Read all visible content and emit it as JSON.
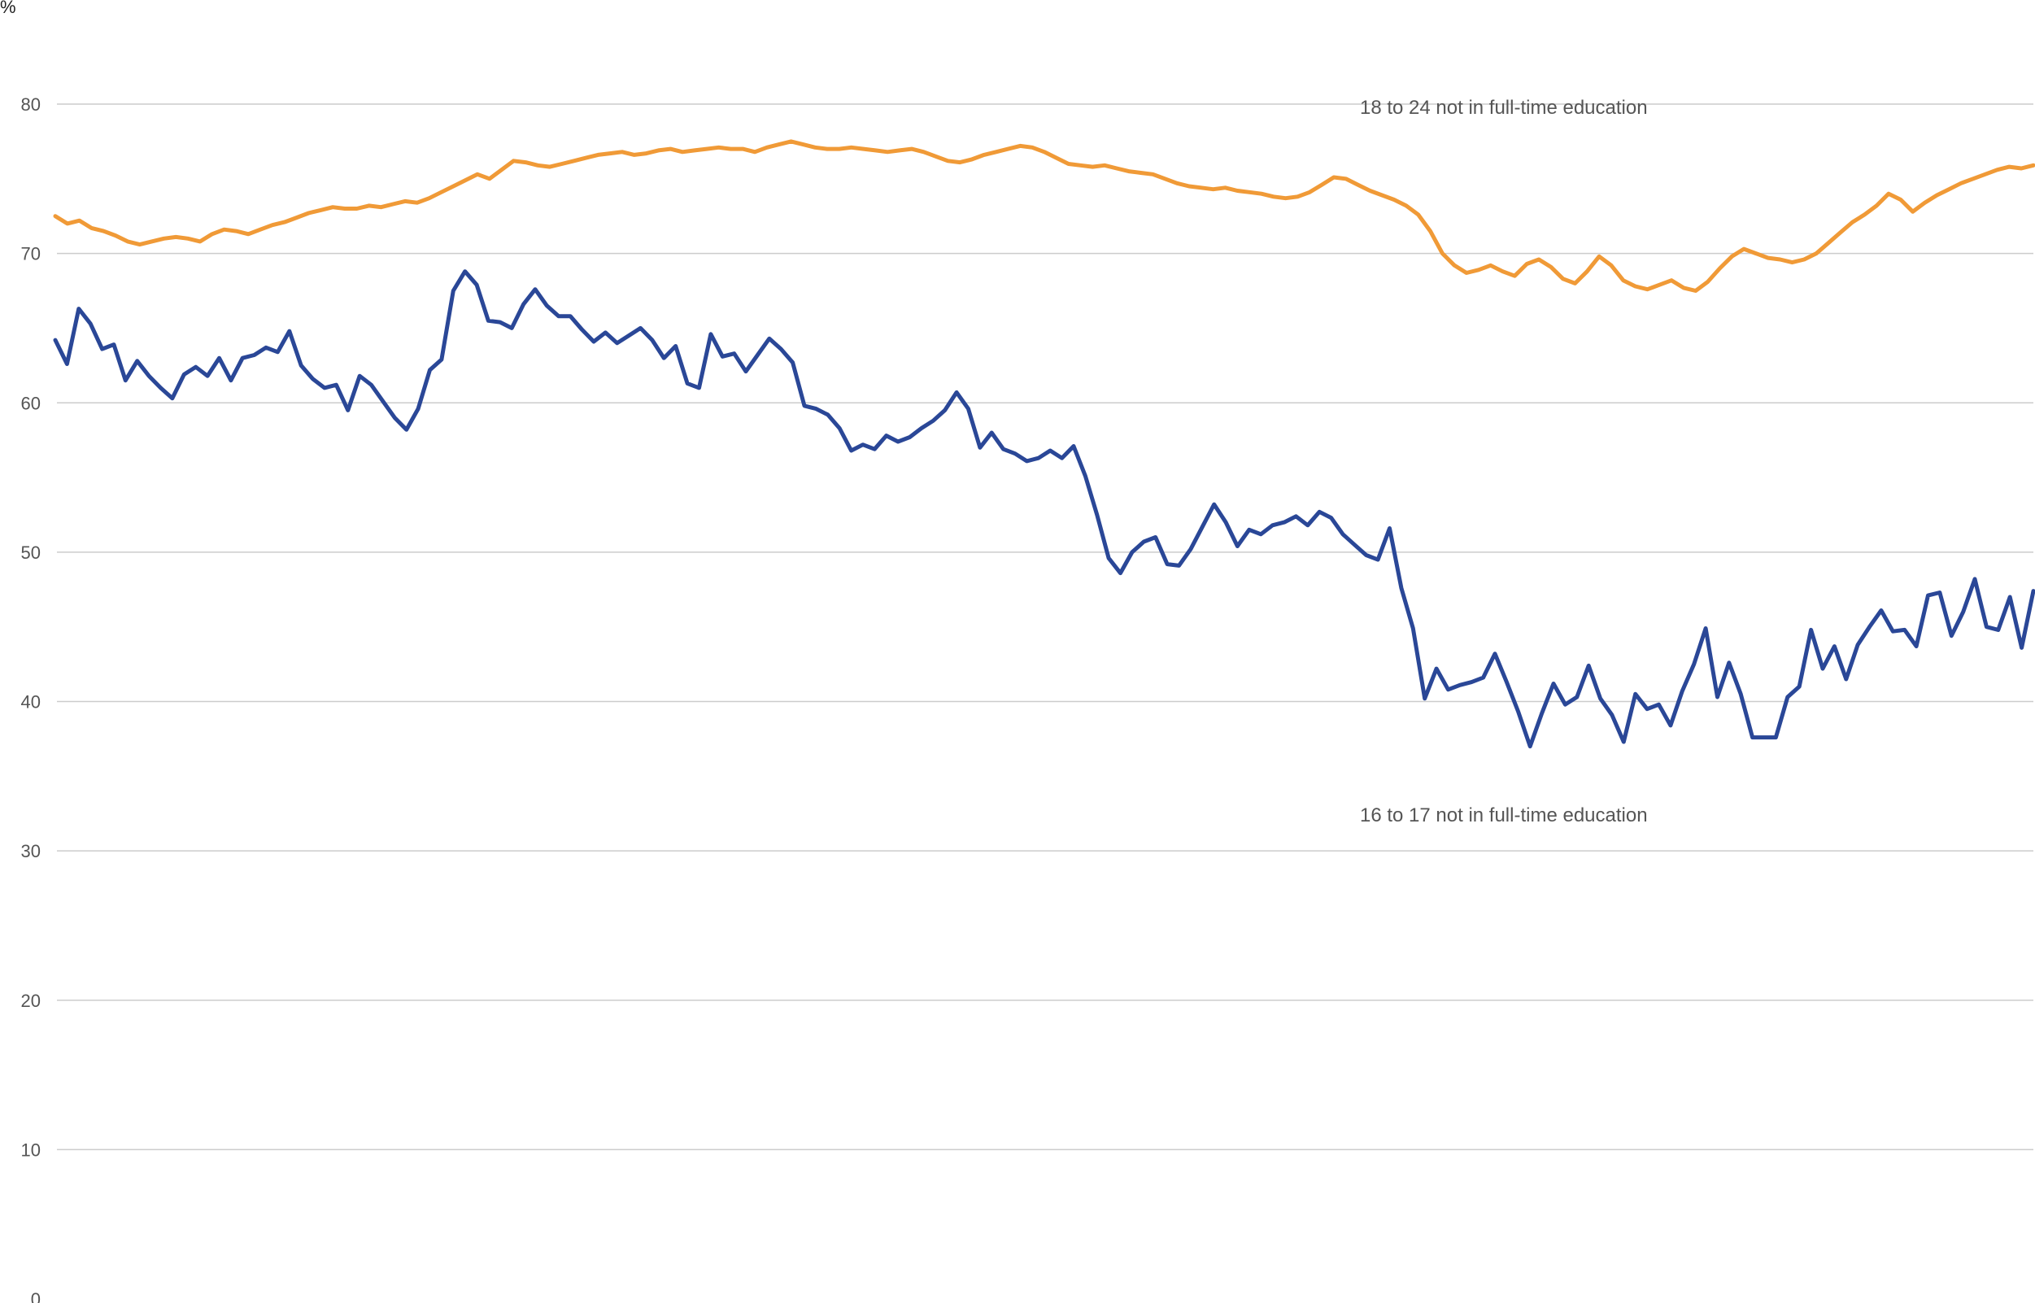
{
  "chart_data": {
    "type": "line",
    "title": "",
    "xlabel": "",
    "ylabel": "%",
    "ylim": [
      0,
      80
    ],
    "yticks": [
      0,
      10,
      20,
      30,
      40,
      50,
      60,
      70,
      80
    ],
    "grid": true,
    "legend": "none (series labelled directly on chart)",
    "series": [
      {
        "name": "18 to 24 not in full-time education",
        "color": "#f09a37",
        "values": [
          72.5,
          72.0,
          72.2,
          71.7,
          71.5,
          71.2,
          70.8,
          70.6,
          70.8,
          71.0,
          71.1,
          71.0,
          70.8,
          71.3,
          71.6,
          71.5,
          71.3,
          71.6,
          71.9,
          72.1,
          72.4,
          72.7,
          72.9,
          73.1,
          73.0,
          73.0,
          73.2,
          73.1,
          73.3,
          73.5,
          73.4,
          73.7,
          74.1,
          74.5,
          74.9,
          75.3,
          75.0,
          75.6,
          76.2,
          76.1,
          75.9,
          75.8,
          76.0,
          76.2,
          76.4,
          76.6,
          76.7,
          76.8,
          76.6,
          76.7,
          76.9,
          77.0,
          76.8,
          76.9,
          77.0,
          77.1,
          77.0,
          77.0,
          76.8,
          77.1,
          77.3,
          77.5,
          77.3,
          77.1,
          77.0,
          77.0,
          77.1,
          77.0,
          76.9,
          76.8,
          76.9,
          77.0,
          76.8,
          76.5,
          76.2,
          76.1,
          76.3,
          76.6,
          76.8,
          77.0,
          77.2,
          77.1,
          76.8,
          76.4,
          76.0,
          75.9,
          75.8,
          75.9,
          75.7,
          75.5,
          75.4,
          75.3,
          75.0,
          74.7,
          74.5,
          74.4,
          74.3,
          74.4,
          74.2,
          74.1,
          74.0,
          73.8,
          73.7,
          73.8,
          74.1,
          74.6,
          75.1,
          75.0,
          74.6,
          74.2,
          73.9,
          73.6,
          73.2,
          72.6,
          71.5,
          70.0,
          69.2,
          68.7,
          68.9,
          69.2,
          68.8,
          68.5,
          69.3,
          69.6,
          69.1,
          68.3,
          68.0,
          68.8,
          69.8,
          69.2,
          68.2,
          67.8,
          67.6,
          67.9,
          68.2,
          67.7,
          67.5,
          68.1,
          69.0,
          69.8,
          70.3,
          70.0,
          69.7,
          69.6,
          69.4,
          69.6,
          70.0,
          70.7,
          71.4,
          72.1,
          72.6,
          73.2,
          74.0,
          73.6,
          72.8,
          73.4,
          73.9,
          74.3,
          74.7,
          75.0,
          75.3,
          75.6,
          75.8,
          75.7,
          75.9
        ]
      },
      {
        "name": "16 to 17 not in full-time education",
        "color": "#2a4797",
        "values": [
          64.2,
          62.6,
          66.3,
          65.3,
          63.6,
          63.9,
          61.5,
          62.8,
          61.8,
          61.0,
          60.3,
          61.9,
          62.4,
          61.8,
          63.0,
          61.5,
          63.0,
          63.2,
          63.7,
          63.4,
          64.8,
          62.5,
          61.6,
          61.0,
          61.2,
          59.5,
          61.8,
          61.2,
          60.1,
          59.0,
          58.2,
          59.6,
          62.2,
          62.9,
          67.5,
          68.8,
          67.9,
          65.5,
          65.4,
          65.0,
          66.6,
          67.6,
          66.5,
          65.8,
          65.8,
          64.9,
          64.1,
          64.7,
          64.0,
          64.5,
          65.0,
          64.2,
          63.0,
          63.8,
          61.3,
          61.0,
          64.6,
          63.1,
          63.3,
          62.1,
          63.2,
          64.3,
          63.6,
          62.7,
          59.8,
          59.6,
          59.2,
          58.3,
          56.8,
          57.2,
          56.9,
          57.8,
          57.4,
          57.7,
          58.3,
          58.8,
          59.5,
          60.7,
          59.6,
          57.0,
          58.0,
          56.9,
          56.6,
          56.1,
          56.3,
          56.8,
          56.3,
          57.1,
          55.1,
          52.5,
          49.6,
          48.6,
          50.0,
          50.7,
          51.0,
          49.2,
          49.1,
          50.2,
          51.7,
          53.2,
          52.0,
          50.4,
          51.5,
          51.2,
          51.8,
          52.0,
          52.4,
          51.8,
          52.7,
          52.3,
          51.2,
          50.5,
          49.8,
          49.5,
          51.6,
          47.6,
          44.9,
          40.2,
          42.2,
          40.8,
          41.1,
          41.3,
          41.6,
          43.2,
          41.3,
          39.3,
          37.0,
          39.2,
          41.2,
          39.8,
          40.3,
          42.4,
          40.2,
          39.1,
          37.3,
          40.5,
          39.5,
          39.8,
          38.4,
          40.7,
          42.5,
          44.9,
          40.3,
          42.6,
          40.5,
          37.6,
          37.6,
          37.6,
          40.3,
          41.0,
          44.8,
          42.2,
          43.7,
          41.5,
          43.8,
          45.0,
          46.1,
          44.7,
          44.8,
          43.7,
          47.1,
          47.3,
          44.4,
          46.0,
          48.2,
          45.0,
          44.8,
          47.0,
          43.6,
          47.4
        ]
      }
    ]
  }
}
